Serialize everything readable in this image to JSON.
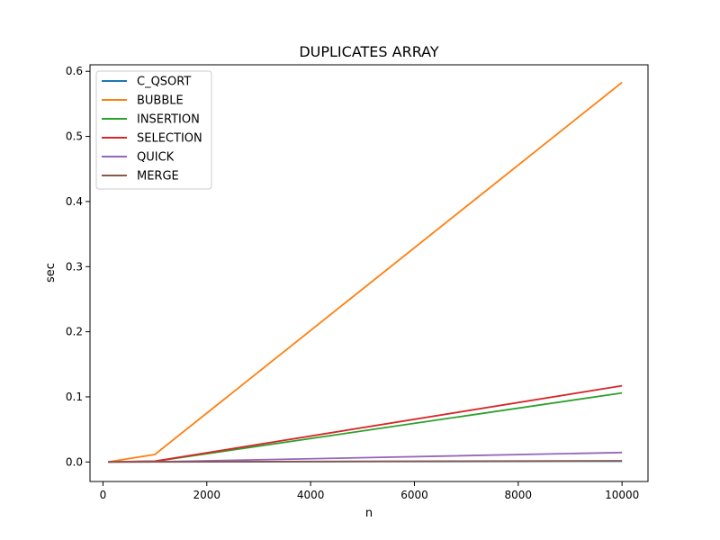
{
  "chart_data": {
    "type": "line",
    "title": "DUPLICATES ARRAY",
    "xlabel": "n",
    "ylabel": "sec",
    "xlim": [
      -250,
      10500
    ],
    "ylim": [
      -0.03,
      0.61
    ],
    "xticks": [
      0,
      2000,
      4000,
      6000,
      8000,
      10000
    ],
    "xtick_labels": [
      "0",
      "2000",
      "4000",
      "6000",
      "8000",
      "10000"
    ],
    "yticks": [
      0.0,
      0.1,
      0.2,
      0.3,
      0.4,
      0.5,
      0.6
    ],
    "ytick_labels": [
      "0.0",
      "0.1",
      "0.2",
      "0.3",
      "0.4",
      "0.5",
      "0.6"
    ],
    "grid": false,
    "legend_position": "top-left",
    "x": [
      100,
      1000,
      10000
    ],
    "series": [
      {
        "name": "C_QSORT",
        "color": "#1f77b4",
        "values": [
          1e-05,
          0.0001,
          0.0012
        ]
      },
      {
        "name": "BUBBLE",
        "color": "#ff7f0e",
        "values": [
          0.0001,
          0.0115,
          0.583
        ]
      },
      {
        "name": "INSERTION",
        "color": "#2ca02c",
        "values": [
          5e-05,
          0.001,
          0.106
        ]
      },
      {
        "name": "SELECTION",
        "color": "#d62728",
        "values": [
          5e-05,
          0.0012,
          0.117
        ]
      },
      {
        "name": "QUICK",
        "color": "#9467bd",
        "values": [
          2e-05,
          0.0002,
          0.0145
        ]
      },
      {
        "name": "MERGE",
        "color": "#8c564b",
        "values": [
          3e-05,
          0.0002,
          0.0018
        ]
      }
    ]
  }
}
